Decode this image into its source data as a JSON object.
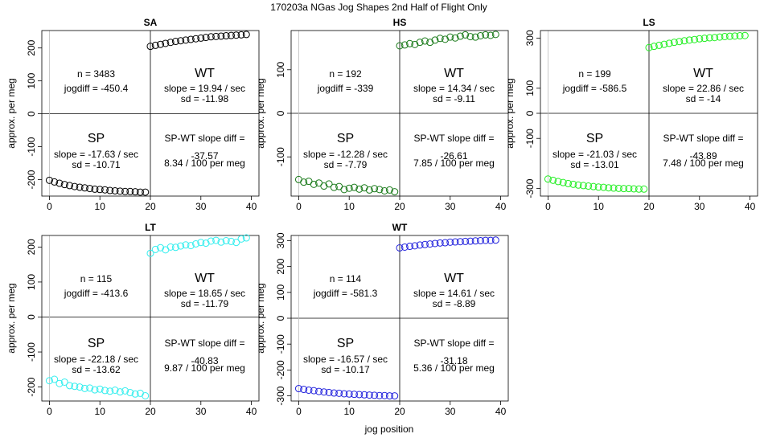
{
  "figure": {
    "title": "170203a   NGas Jog Shapes 2nd Half of Flight Only",
    "xlabel": "jog position"
  },
  "chart_data": [
    {
      "type": "scatter",
      "title": "SA",
      "ylabel": "approx. per meg",
      "color": "#000000",
      "xlim": [
        -1.5,
        41.5
      ],
      "ylim": [
        -250,
        253
      ],
      "xticks": [
        0,
        10,
        20,
        30,
        40
      ],
      "yticks": [
        -200,
        -100,
        0,
        100,
        200
      ],
      "sp_points": {
        "x": [
          0,
          1,
          2,
          3,
          4,
          5,
          6,
          7,
          8,
          9,
          10,
          11,
          12,
          13,
          14,
          15,
          16,
          17,
          18,
          19
        ],
        "y": [
          -202,
          -207,
          -211,
          -215,
          -218,
          -221,
          -223,
          -225,
          -227,
          -229,
          -230,
          -231,
          -233,
          -234,
          -235,
          -236,
          -236,
          -237,
          -238,
          -238
        ]
      },
      "wt_points": {
        "x": [
          20,
          21,
          22,
          23,
          24,
          25,
          26,
          27,
          28,
          29,
          30,
          31,
          32,
          33,
          34,
          35,
          36,
          37,
          38,
          39
        ],
        "y": [
          205,
          208,
          211,
          214,
          217,
          220,
          222,
          224,
          226,
          228,
          230,
          232,
          234,
          235,
          236,
          237,
          238,
          239,
          240,
          241
        ]
      },
      "stats": {
        "n": "n = 3483",
        "jogdiff": "jogdiff = -450.4",
        "wt_label": "WT",
        "wt_slope": "slope = 19.94 / sec",
        "wt_sd": "sd = -11.98",
        "sp_label": "SP",
        "sp_slope": "slope = -17.63 / sec",
        "sp_sd": "sd = -10.71",
        "diff_label": "SP-WT slope diff =",
        "diff_value": "-37.57",
        "diff_rate": "8.34 / 100 per meg"
      }
    },
    {
      "type": "scatter",
      "title": "HS",
      "ylabel": "approx. per meg",
      "color": "#1a7a1a",
      "xlim": [
        -1.5,
        41.5
      ],
      "ylim": [
        -190,
        190
      ],
      "xticks": [
        0,
        10,
        20,
        30,
        40
      ],
      "yticks": [
        -100,
        0,
        100
      ],
      "sp_points": {
        "x": [
          0,
          1,
          2,
          3,
          4,
          5,
          6,
          7,
          8,
          9,
          10,
          11,
          12,
          13,
          14,
          15,
          16,
          17,
          18,
          19
        ],
        "y": [
          -152,
          -158,
          -156,
          -163,
          -160,
          -167,
          -162,
          -170,
          -168,
          -175,
          -172,
          -170,
          -174,
          -171,
          -176,
          -173,
          -175,
          -178,
          -176,
          -180
        ]
      },
      "wt_points": {
        "x": [
          20,
          21,
          22,
          23,
          24,
          25,
          26,
          27,
          28,
          29,
          30,
          31,
          32,
          33,
          34,
          35,
          36,
          37,
          38,
          39
        ],
        "y": [
          155,
          157,
          160,
          158,
          163,
          166,
          163,
          168,
          172,
          170,
          175,
          173,
          177,
          180,
          176,
          175,
          178,
          180,
          179,
          181
        ]
      },
      "stats": {
        "n": "n = 192",
        "jogdiff": "jogdiff = -339",
        "wt_label": "WT",
        "wt_slope": "slope = 14.34 / sec",
        "wt_sd": "sd = -9.11",
        "sp_label": "SP",
        "sp_slope": "slope = -12.28 / sec",
        "sp_sd": "sd = -7.79",
        "diff_label": "SP-WT slope diff =",
        "diff_value": "-26.61",
        "diff_rate": "7.85 / 100 per meg"
      }
    },
    {
      "type": "scatter",
      "title": "LS",
      "ylabel": "approx. per meg",
      "color": "#22ee22",
      "xlim": [
        -1.5,
        41.5
      ],
      "ylim": [
        -330,
        330
      ],
      "xticks": [
        0,
        10,
        20,
        30,
        40
      ],
      "yticks": [
        -300,
        -100,
        0,
        100,
        300
      ],
      "sp_points": {
        "x": [
          0,
          1,
          2,
          3,
          4,
          5,
          6,
          7,
          8,
          9,
          10,
          11,
          12,
          13,
          14,
          15,
          16,
          17,
          18,
          19
        ],
        "y": [
          -262,
          -267,
          -272,
          -276,
          -280,
          -283,
          -286,
          -288,
          -290,
          -292,
          -294,
          -295,
          -297,
          -298,
          -299,
          -300,
          -300,
          -301,
          -302,
          -302
        ]
      },
      "wt_points": {
        "x": [
          20,
          21,
          22,
          23,
          24,
          25,
          26,
          27,
          28,
          29,
          30,
          31,
          32,
          33,
          34,
          35,
          36,
          37,
          38,
          39
        ],
        "y": [
          262,
          267,
          271,
          275,
          279,
          283,
          286,
          289,
          292,
          294,
          297,
          299,
          301,
          302,
          304,
          306,
          307,
          308,
          309,
          310
        ]
      },
      "stats": {
        "n": "n = 199",
        "jogdiff": "jogdiff = -586.5",
        "wt_label": "WT",
        "wt_slope": "slope = 22.86 / sec",
        "wt_sd": "sd = -14",
        "sp_label": "SP",
        "sp_slope": "slope = -21.03 / sec",
        "sp_sd": "sd = -13.01",
        "diff_label": "SP-WT slope diff =",
        "diff_value": "-43.89",
        "diff_rate": "7.48 / 100 per meg"
      }
    },
    {
      "type": "scatter",
      "title": "LT",
      "ylabel": "approx. per meg",
      "color": "#33eeee",
      "xlim": [
        -1.5,
        41.5
      ],
      "ylim": [
        -240,
        233
      ],
      "xticks": [
        0,
        10,
        20,
        30,
        40
      ],
      "yticks": [
        -200,
        -100,
        0,
        100,
        200
      ],
      "sp_points": {
        "x": [
          0,
          1,
          2,
          3,
          4,
          5,
          6,
          7,
          8,
          9,
          10,
          11,
          12,
          13,
          14,
          15,
          16,
          17,
          18,
          19
        ],
        "y": [
          -182,
          -178,
          -190,
          -186,
          -196,
          -198,
          -200,
          -204,
          -203,
          -208,
          -206,
          -210,
          -212,
          -209,
          -214,
          -211,
          -216,
          -220,
          -218,
          -225
        ]
      },
      "wt_points": {
        "x": [
          20,
          21,
          22,
          23,
          24,
          25,
          26,
          27,
          28,
          29,
          30,
          31,
          32,
          33,
          34,
          35,
          36,
          37,
          38,
          39
        ],
        "y": [
          182,
          193,
          198,
          192,
          200,
          199,
          203,
          206,
          204,
          209,
          213,
          211,
          217,
          219,
          214,
          218,
          216,
          213,
          223,
          226
        ]
      },
      "stats": {
        "n": "n = 115",
        "jogdiff": "jogdiff = -413.6",
        "wt_label": "WT",
        "wt_slope": "slope = 18.65 / sec",
        "wt_sd": "sd = -11.79",
        "sp_label": "SP",
        "sp_slope": "slope = -22.18 / sec",
        "sp_sd": "sd = -13.62",
        "diff_label": "SP-WT slope diff =",
        "diff_value": "-40.83",
        "diff_rate": "9.87 / 100 per meg"
      }
    },
    {
      "type": "scatter",
      "title": "WT",
      "ylabel": "approx. per meg",
      "color": "#2222dd",
      "xlim": [
        -1.5,
        41.5
      ],
      "ylim": [
        -320,
        320
      ],
      "xticks": [
        0,
        10,
        20,
        30,
        40
      ],
      "yticks": [
        -300,
        -200,
        -100,
        0,
        100,
        200,
        300
      ],
      "sp_points": {
        "x": [
          0,
          1,
          2,
          3,
          4,
          5,
          6,
          7,
          8,
          9,
          10,
          11,
          12,
          13,
          14,
          15,
          16,
          17,
          18,
          19
        ],
        "y": [
          -272,
          -275,
          -278,
          -280,
          -283,
          -285,
          -287,
          -289,
          -290,
          -292,
          -293,
          -294,
          -295,
          -296,
          -297,
          -298,
          -299,
          -299,
          -300,
          -300
        ]
      },
      "wt_points": {
        "x": [
          20,
          21,
          22,
          23,
          24,
          25,
          26,
          27,
          28,
          29,
          30,
          31,
          32,
          33,
          34,
          35,
          36,
          37,
          38,
          39
        ],
        "y": [
          272,
          275,
          278,
          280,
          283,
          285,
          287,
          289,
          291,
          292,
          294,
          295,
          296,
          297,
          298,
          299,
          300,
          301,
          301,
          302
        ]
      },
      "stats": {
        "n": "n = 114",
        "jogdiff": "jogdiff = -581.3",
        "wt_label": "WT",
        "wt_slope": "slope = 14.61 / sec",
        "wt_sd": "sd = -8.89",
        "sp_label": "SP",
        "sp_slope": "slope = -16.57 / sec",
        "sp_sd": "sd = -10.17",
        "diff_label": "SP-WT slope diff =",
        "diff_value": "-31.18",
        "diff_rate": "5.36 / 100 per meg"
      }
    }
  ]
}
